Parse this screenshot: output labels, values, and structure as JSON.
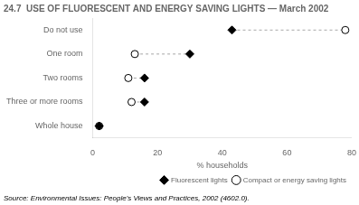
{
  "chart_data": {
    "type": "dot",
    "title": "24.7  USE OF FLUORESCENT AND ENERGY SAVING LIGHTS — March 2002",
    "orientation": "horizontal",
    "categories": [
      "Do not use",
      "One room",
      "Two rooms",
      "Three or more rooms",
      "Whole house"
    ],
    "series": [
      {
        "name": "Fluorescent lights",
        "color": "#000000",
        "marker": "diamond",
        "values": [
          43,
          30,
          16,
          16,
          2
        ]
      },
      {
        "name": "Compact or energy saving lights",
        "color": "#ffffff",
        "marker": "circle",
        "values": [
          78,
          13,
          11,
          12,
          2
        ]
      }
    ],
    "xlabel": "% households",
    "xlim": [
      0,
      80
    ],
    "xticks": [
      0,
      20,
      40,
      60,
      80
    ],
    "grid": false,
    "legend": "lower right",
    "annotations": [
      "Source: Environmental Issues: People's Views and Practices, 2002 (4602.0)."
    ]
  }
}
